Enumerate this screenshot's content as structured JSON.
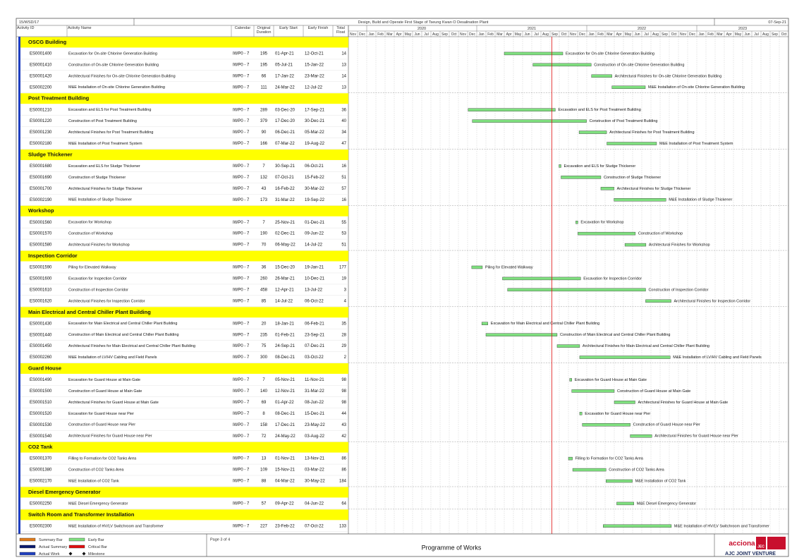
{
  "header": {
    "project_code": "15/WSD/17",
    "title": "Design, Build and Operate First Stage of Tseung Kwan O Desalination Plant",
    "data_date": "07-Sep-21"
  },
  "columns": {
    "id": "Activity ID",
    "name": "Activity Name",
    "calendar": "Calendar",
    "duration": "Original Duration",
    "start": "Early Start",
    "finish": "Early Finish",
    "float": "Total Float"
  },
  "timeline": {
    "years": [
      "2020",
      "2021",
      "2022",
      "2023"
    ],
    "months": [
      "Nov",
      "Dec",
      "Jan",
      "Feb",
      "Mar",
      "Apr",
      "May",
      "Jun",
      "Jul",
      "Aug",
      "Sep",
      "Oct",
      "Nov",
      "Dec",
      "Jan",
      "Feb",
      "Mar",
      "Apr",
      "May",
      "Jun",
      "Jul",
      "Aug",
      "Sep",
      "Oct",
      "Nov",
      "Dec",
      "Jan",
      "Feb",
      "Mar",
      "Apr",
      "May",
      "Jun",
      "Jul",
      "Aug",
      "Sep",
      "Oct",
      "Nov",
      "Dec",
      "Jan",
      "Feb",
      "Mar",
      "Apr",
      "May",
      "Jun",
      "Jul",
      "Aug",
      "Sep",
      "Oct"
    ]
  },
  "groups": [
    {
      "name": "OSCG Building",
      "activities": [
        {
          "id": "ES0001400",
          "name": "Excavation for On-site Chlorine Generation Building",
          "calendar": "IWP0 - 7",
          "duration": 195,
          "start": "01-Apr-21",
          "finish": "12-Oct-21",
          "float": 14
        },
        {
          "id": "ES0001410",
          "name": "Construction of On-site Chlorine Generation Building",
          "calendar": "IWP0 - 7",
          "duration": 195,
          "start": "05-Jul-21",
          "finish": "15-Jan-22",
          "float": 13
        },
        {
          "id": "ES0001420",
          "name": "Architectural Finishes for On-site Chlorine Generation Building",
          "calendar": "IWP0 - 7",
          "duration": 66,
          "start": "17-Jan-22",
          "finish": "23-Mar-22",
          "float": 14
        },
        {
          "id": "ES0002200",
          "name": "M&E Installation of On-site Chlorine Generation Building",
          "calendar": "IWP0 - 7",
          "duration": 111,
          "start": "24-Mar-22",
          "finish": "12-Jul-22",
          "float": 13
        }
      ]
    },
    {
      "name": "Post Treatment Building",
      "activities": [
        {
          "id": "ES0001210",
          "name": "Excavation and ELS for Post Treatment Building",
          "calendar": "IWP0 - 7",
          "duration": 289,
          "start": "03-Dec-20",
          "finish": "17-Sep-21",
          "float": 36
        },
        {
          "id": "ES0001220",
          "name": "Construction of Post Treatment Building",
          "calendar": "IWP0 - 7",
          "duration": 379,
          "start": "17-Dec-20",
          "finish": "30-Dec-21",
          "float": 40
        },
        {
          "id": "ES0001230",
          "name": "Architectural Finishes for Post Treatment Building",
          "calendar": "IWP0 - 7",
          "duration": 90,
          "start": "06-Dec-21",
          "finish": "05-Mar-22",
          "float": 34
        },
        {
          "id": "ES0002180",
          "name": "M&E Installation of Post Treatment System",
          "calendar": "IWP0 - 7",
          "duration": 166,
          "start": "07-Mar-22",
          "finish": "19-Aug-22",
          "float": 47
        }
      ]
    },
    {
      "name": "Sludge Thickener",
      "activities": [
        {
          "id": "ES0001680",
          "name": "Excavation and ELS for Sludge Thickener",
          "calendar": "IWP0 - 7",
          "duration": 7,
          "start": "30-Sep-21",
          "finish": "06-Oct-21",
          "float": 16
        },
        {
          "id": "ES0001690",
          "name": "Construction of Sludge Thickener",
          "calendar": "IWP0 - 7",
          "duration": 132,
          "start": "07-Oct-21",
          "finish": "15-Feb-22",
          "float": 51
        },
        {
          "id": "ES0001700",
          "name": "Architectural Finishes for Sludge Thickener",
          "calendar": "IWP0 - 7",
          "duration": 43,
          "start": "16-Feb-22",
          "finish": "30-Mar-22",
          "float": 57
        },
        {
          "id": "ES0002190",
          "name": "M&E Installation of Sludge Thickener",
          "calendar": "IWP0 - 7",
          "duration": 173,
          "start": "31-Mar-22",
          "finish": "19-Sep-22",
          "float": 16
        }
      ]
    },
    {
      "name": "Workshop",
      "activities": [
        {
          "id": "ES0001560",
          "name": "Excavation for Workshop",
          "calendar": "IWP0 - 7",
          "duration": 7,
          "start": "25-Nov-21",
          "finish": "01-Dec-21",
          "float": 55
        },
        {
          "id": "ES0001570",
          "name": "Construction of Workshop",
          "calendar": "IWP0 - 7",
          "duration": 190,
          "start": "02-Dec-21",
          "finish": "09-Jun-22",
          "float": 53
        },
        {
          "id": "ES0001580",
          "name": "Architectural Finishes for Workshop",
          "calendar": "IWP0 - 7",
          "duration": 70,
          "start": "06-May-22",
          "finish": "14-Jul-22",
          "float": 51
        }
      ]
    },
    {
      "name": "Inspection Corridor",
      "activities": [
        {
          "id": "ES0001590",
          "name": "Piling for Elevated Walkway",
          "calendar": "IWP0 - 7",
          "duration": 36,
          "start": "15-Dec-20",
          "finish": "19-Jan-21",
          "float": 177
        },
        {
          "id": "ES0001600",
          "name": "Excavation for Inspection Corridor",
          "calendar": "IWP0 - 7",
          "duration": 260,
          "start": "26-Mar-21",
          "finish": "10-Dec-21",
          "float": 19
        },
        {
          "id": "ES0001610",
          "name": "Construction of Inspection Corridor",
          "calendar": "IWP0 - 7",
          "duration": 458,
          "start": "12-Apr-21",
          "finish": "13-Jul-22",
          "float": 3
        },
        {
          "id": "ES0001620",
          "name": "Architectural Finishes for Inspection Corridor",
          "calendar": "IWP0 - 7",
          "duration": 85,
          "start": "14-Jul-22",
          "finish": "06-Oct-22",
          "float": 4
        }
      ]
    },
    {
      "name": "Main Electrical and Central Chiller Plant Building",
      "activities": [
        {
          "id": "ES0001430",
          "name": "Excavation for Main Electrical and Central Chiller Plant Building",
          "calendar": "IWP0 - 7",
          "duration": 20,
          "start": "18-Jan-21",
          "finish": "06-Feb-21",
          "float": 35
        },
        {
          "id": "ES0001440",
          "name": "Construction of Main Electrical and Central Chiller Plant Building",
          "calendar": "IWP0 - 7",
          "duration": 235,
          "start": "01-Feb-21",
          "finish": "23-Sep-21",
          "float": 28
        },
        {
          "id": "ES0001450",
          "name": "Architectural Finishes for Main Electrical and Central Chiller Plant Building",
          "calendar": "IWP0 - 7",
          "duration": 75,
          "start": "24-Sep-21",
          "finish": "07-Dec-21",
          "float": 29
        },
        {
          "id": "ES0002260",
          "name": "M&E Installation of LV/HV Cabling and Field Panels",
          "calendar": "IWP0 - 7",
          "duration": 300,
          "start": "08-Dec-21",
          "finish": "03-Oct-22",
          "float": 2
        }
      ]
    },
    {
      "name": "Guard House",
      "activities": [
        {
          "id": "ES0001490",
          "name": "Excavation for Guard House at Main Gate",
          "calendar": "IWP0 - 7",
          "duration": 7,
          "start": "05-Nov-21",
          "finish": "11-Nov-21",
          "float": 98
        },
        {
          "id": "ES0001500",
          "name": "Construction of Guard House at Main Gate",
          "calendar": "IWP0 - 7",
          "duration": 140,
          "start": "12-Nov-21",
          "finish": "31-Mar-22",
          "float": 98
        },
        {
          "id": "ES0001510",
          "name": "Architectural Finishes for Guard House at Main Gate",
          "calendar": "IWP0 - 7",
          "duration": 69,
          "start": "01-Apr-22",
          "finish": "08-Jun-22",
          "float": 98
        },
        {
          "id": "ES0001520",
          "name": "Excavation for Guard House near Pier",
          "calendar": "IWP0 - 7",
          "duration": 8,
          "start": "08-Dec-21",
          "finish": "15-Dec-21",
          "float": 44
        },
        {
          "id": "ES0001530",
          "name": "Construction of Guard House near Pier",
          "calendar": "IWP0 - 7",
          "duration": 158,
          "start": "17-Dec-21",
          "finish": "23-May-22",
          "float": 43
        },
        {
          "id": "ES0001540",
          "name": "Architectural Finishes for Guard House near Pier",
          "calendar": "IWP0 - 7",
          "duration": 72,
          "start": "24-May-22",
          "finish": "03-Aug-22",
          "float": 42
        }
      ]
    },
    {
      "name": "CO2 Tank",
      "activities": [
        {
          "id": "ES0001370",
          "name": "Filling to Formation for CO2 Tanks Area",
          "calendar": "IWP0 - 7",
          "duration": 13,
          "start": "01-Nov-21",
          "finish": "13-Nov-21",
          "float": 86
        },
        {
          "id": "ES0001380",
          "name": "Construction of CO2 Tanks Area",
          "calendar": "IWP0 - 7",
          "duration": 109,
          "start": "15-Nov-21",
          "finish": "03-Mar-22",
          "float": 86
        },
        {
          "id": "ES0002170",
          "name": "M&E Installation of CO2 Tank",
          "calendar": "IWP0 - 7",
          "duration": 88,
          "start": "04-Mar-22",
          "finish": "30-May-22",
          "float": 184
        }
      ]
    },
    {
      "name": "Diesel Emergency Generator",
      "activities": [
        {
          "id": "ES0002250",
          "name": "M&E Diesel Emergency Generator",
          "calendar": "IWP0 - 7",
          "duration": 57,
          "start": "09-Apr-22",
          "finish": "04-Jun-22",
          "float": 64
        }
      ]
    },
    {
      "name": "Switch Room and Transformer Installation",
      "activities": [
        {
          "id": "ES0002300",
          "name": "M&E Installation of HV/LV Switchroom and Transformer",
          "calendar": "IWP0 - 7",
          "duration": 227,
          "start": "23-Feb-22",
          "finish": "07-Oct-22",
          "float": 133
        }
      ]
    }
  ],
  "legend": {
    "summary_bar": "Summary Bar",
    "early_bar": "Early Bar",
    "actual_summary": "Actual Summary",
    "critical_bar": "Critical Bar",
    "actual_work": "Actual Work",
    "milestone": "Milestone"
  },
  "footer": {
    "page": "Page 3 of 4",
    "report_title": "Programme of Works",
    "brand": "acciona",
    "jec": "JEC",
    "venture": "AJC JOINT VENTURE"
  }
}
